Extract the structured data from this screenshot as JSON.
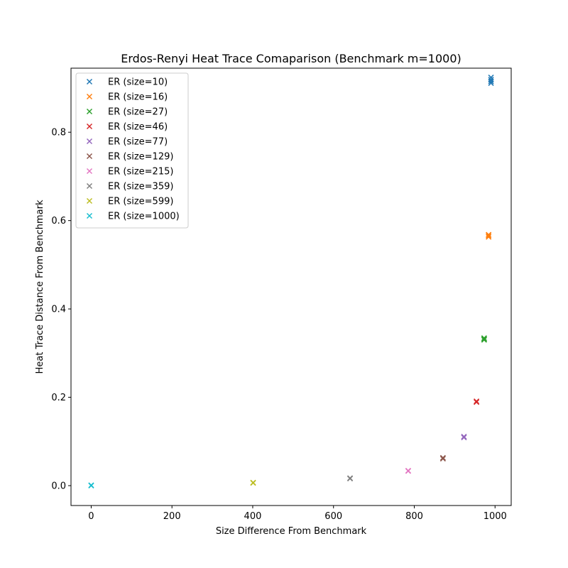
{
  "chart_data": {
    "type": "scatter",
    "title": "Erdos-Renyi Heat Trace Comaparison (Benchmark m=1000)",
    "xlabel": "Size Difference From Benchmark",
    "ylabel": "Heat Trace Distance From Benchmark",
    "xlim": [
      -50,
      1040
    ],
    "ylim": [
      -0.045,
      0.945
    ],
    "xticks": [
      0,
      200,
      400,
      600,
      800,
      1000
    ],
    "xtick_labels": [
      "0",
      "200",
      "400",
      "600",
      "800",
      "1000"
    ],
    "yticks": [
      0.0,
      0.2,
      0.4,
      0.6,
      0.8
    ],
    "ytick_labels": [
      "0.0",
      "0.2",
      "0.4",
      "0.6",
      "0.8"
    ],
    "grid": false,
    "legend_position": "top-left",
    "marker": "x",
    "series": [
      {
        "name": "ER (size=10)",
        "color": "#1f77b4",
        "points": [
          [
            990,
            0.924
          ],
          [
            990,
            0.919
          ],
          [
            990,
            0.915
          ],
          [
            990,
            0.911
          ]
        ]
      },
      {
        "name": "ER (size=16)",
        "color": "#ff7f0e",
        "points": [
          [
            984,
            0.568
          ],
          [
            984,
            0.566
          ],
          [
            984,
            0.563
          ]
        ]
      },
      {
        "name": "ER (size=27)",
        "color": "#2ca02c",
        "points": [
          [
            973,
            0.334
          ],
          [
            973,
            0.332
          ],
          [
            973,
            0.33
          ]
        ]
      },
      {
        "name": "ER (size=46)",
        "color": "#d62728",
        "points": [
          [
            954,
            0.191
          ],
          [
            954,
            0.189
          ]
        ]
      },
      {
        "name": "ER (size=77)",
        "color": "#9467bd",
        "points": [
          [
            923,
            0.111
          ],
          [
            923,
            0.109
          ]
        ]
      },
      {
        "name": "ER (size=129)",
        "color": "#8c564b",
        "points": [
          [
            871,
            0.063
          ],
          [
            871,
            0.061
          ]
        ]
      },
      {
        "name": "ER (size=215)",
        "color": "#e377c2",
        "points": [
          [
            785,
            0.034
          ],
          [
            785,
            0.033
          ]
        ]
      },
      {
        "name": "ER (size=359)",
        "color": "#7f7f7f",
        "points": [
          [
            641,
            0.017
          ],
          [
            641,
            0.016
          ]
        ]
      },
      {
        "name": "ER (size=599)",
        "color": "#bcbd22",
        "points": [
          [
            401,
            0.007
          ],
          [
            401,
            0.006
          ]
        ]
      },
      {
        "name": "ER (size=1000)",
        "color": "#17becf",
        "points": [
          [
            0,
            0.0
          ],
          [
            0,
            0.001
          ]
        ]
      }
    ]
  }
}
